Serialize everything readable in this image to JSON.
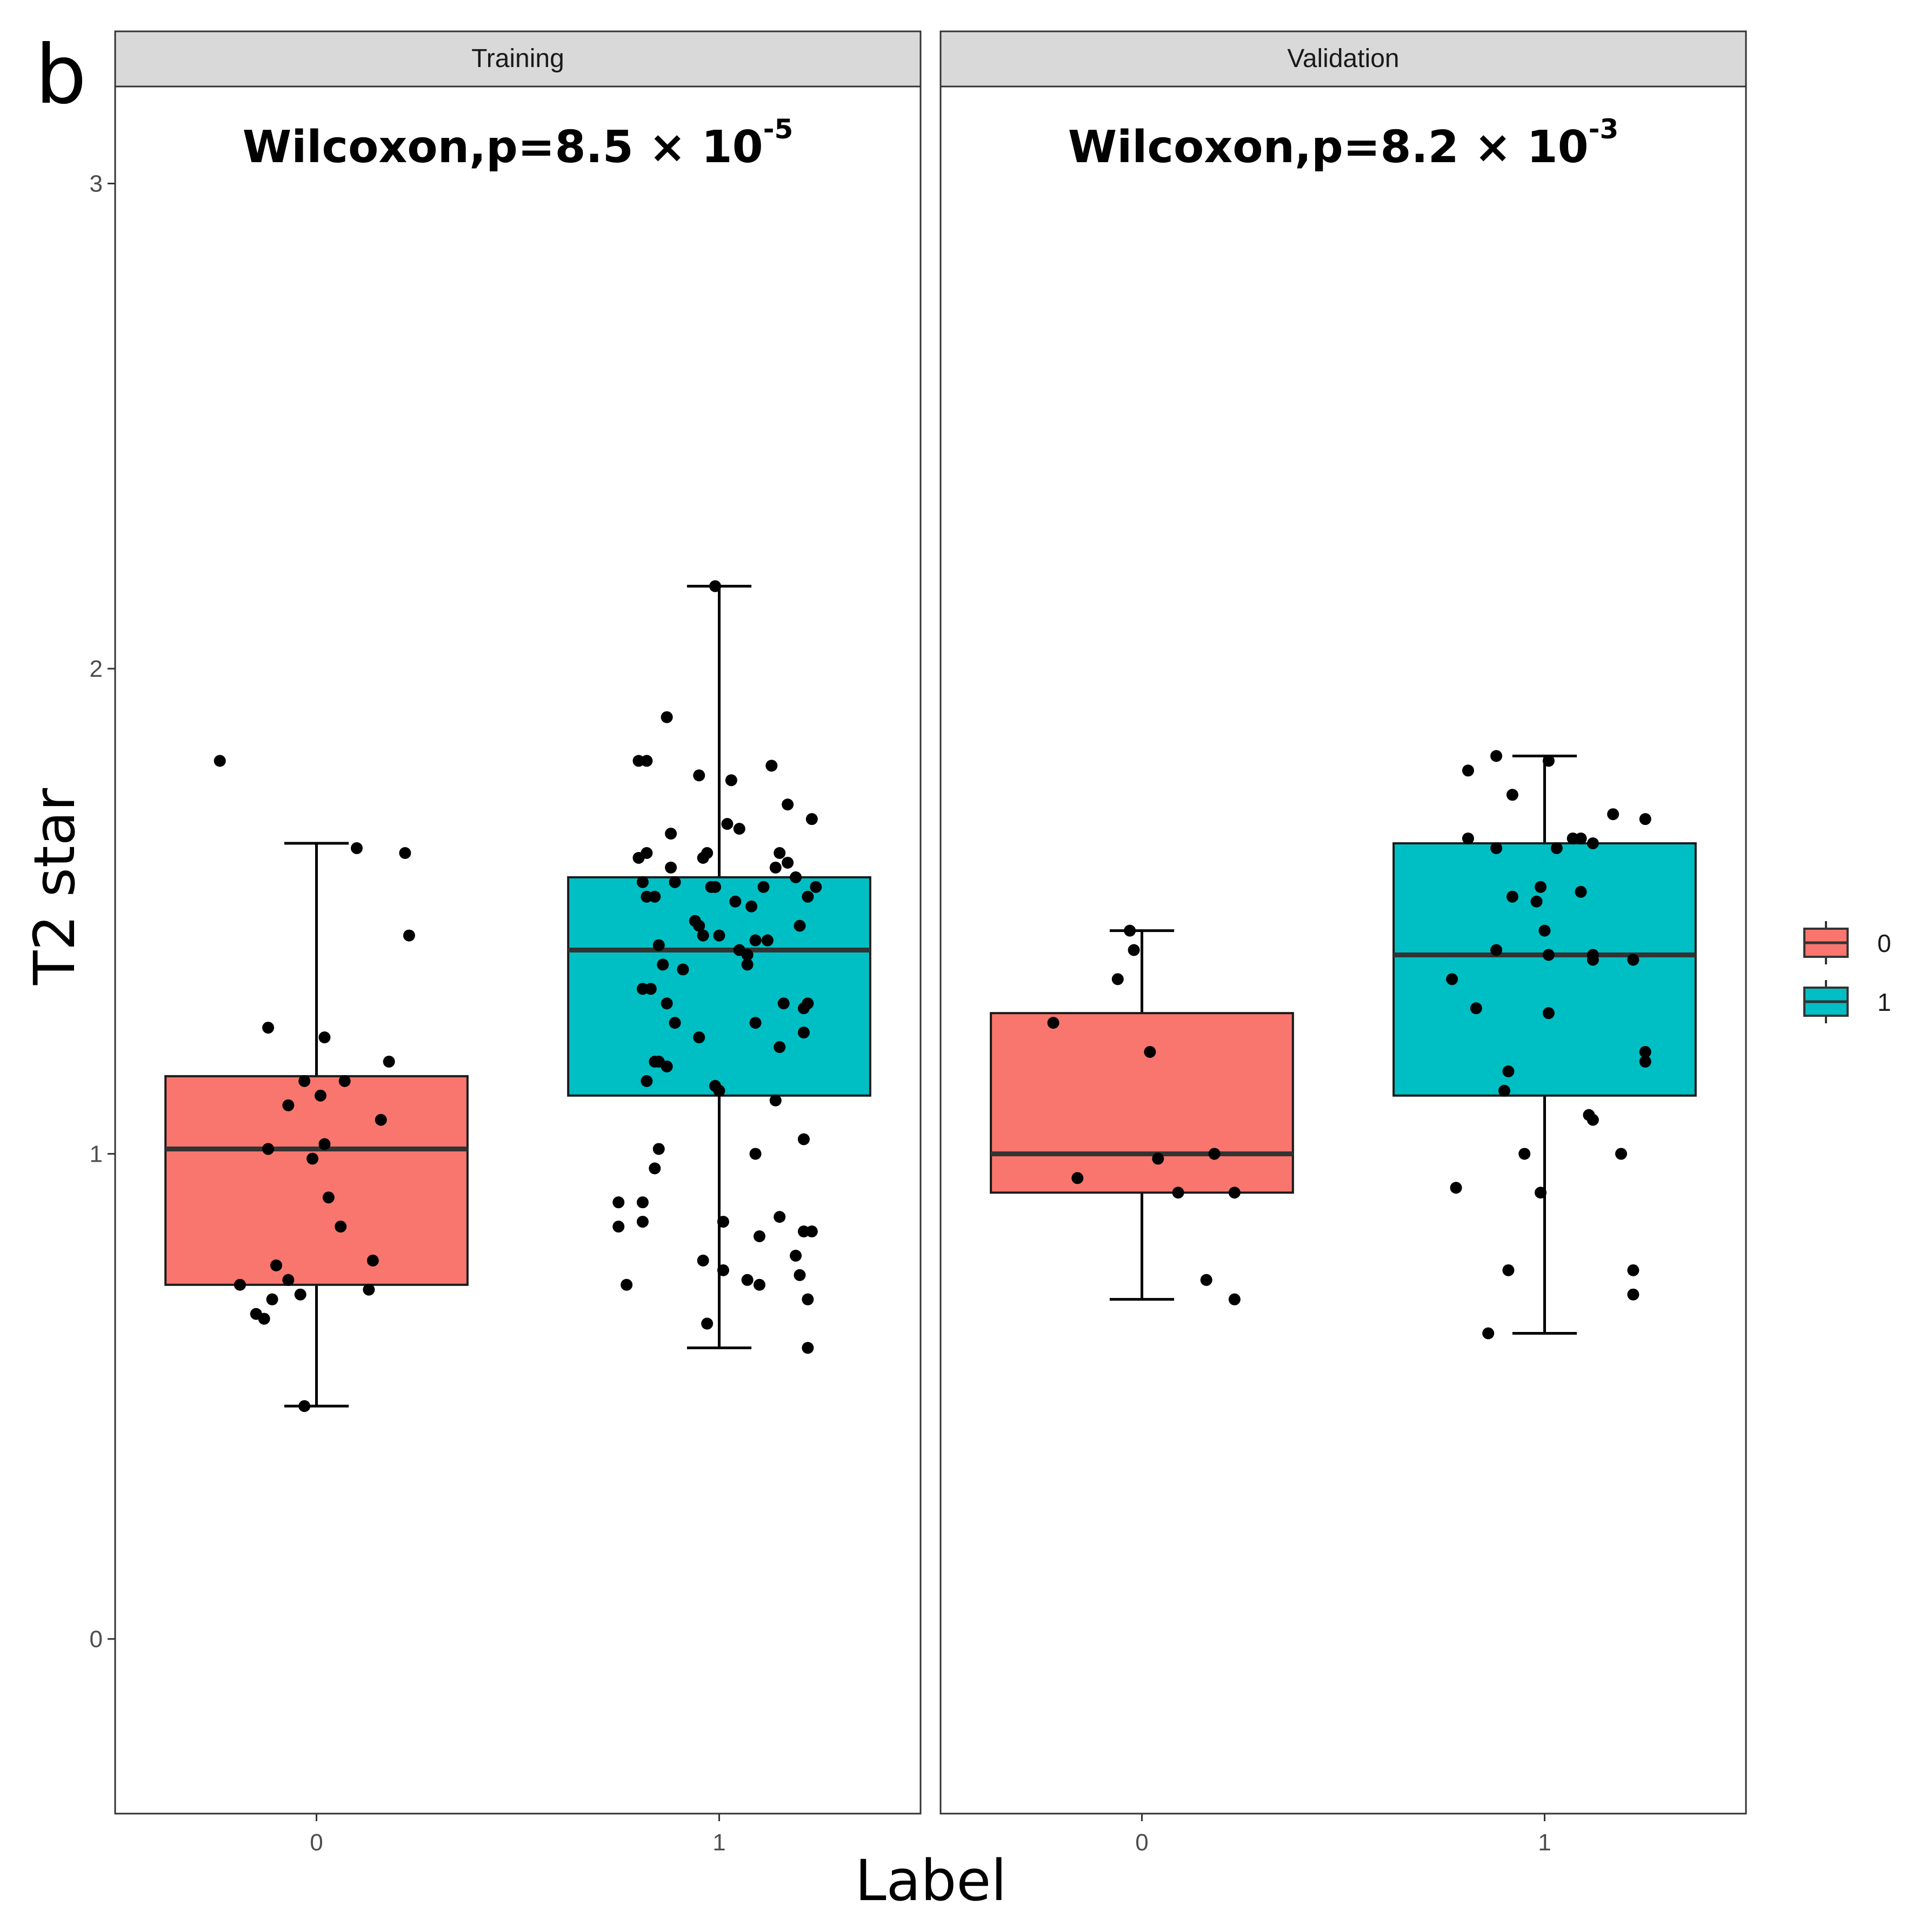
{
  "panel_tag": "b",
  "chart_data": {
    "type": "boxplot",
    "title": "",
    "xlabel": "Label",
    "ylabel": "T2 star",
    "ylim": [
      -0.36,
      3.2
    ],
    "y_ticks": [
      "0",
      "1",
      "2",
      "3"
    ],
    "y_tick_values": [
      0,
      1,
      2,
      3
    ],
    "categories": [
      "0",
      "1"
    ],
    "grid": false,
    "legend": {
      "position": "right",
      "entries": [
        "0",
        "1"
      ],
      "colors": [
        "#F8766D",
        "#00BFC4"
      ]
    },
    "facets": [
      {
        "name": "Training",
        "annotation": {
          "prefix": "Wilcoxon,p=8.5 × 10",
          "exponent": "-5"
        },
        "groups": [
          {
            "label": "0",
            "color": "#F8766D",
            "q1": 0.73,
            "median": 1.01,
            "q3": 1.16,
            "whisker_low": 0.48,
            "whisker_high": 1.64,
            "points": [
              [
                -0.24,
                1.81
              ],
              [
                0.1,
                1.63
              ],
              [
                0.22,
                1.62
              ],
              [
                0.23,
                1.45
              ],
              [
                -0.12,
                1.26
              ],
              [
                0.02,
                1.24
              ],
              [
                0.18,
                1.19
              ],
              [
                -0.03,
                1.15
              ],
              [
                0.07,
                1.15
              ],
              [
                0.01,
                1.12
              ],
              [
                -0.07,
                1.1
              ],
              [
                0.16,
                1.07
              ],
              [
                -0.12,
                1.01
              ],
              [
                0.02,
                1.02
              ],
              [
                -0.01,
                0.99
              ],
              [
                0.03,
                0.91
              ],
              [
                0.06,
                0.85
              ],
              [
                0.14,
                0.78
              ],
              [
                -0.1,
                0.77
              ],
              [
                -0.07,
                0.74
              ],
              [
                0.13,
                0.72
              ],
              [
                -0.19,
                0.73
              ],
              [
                -0.04,
                0.71
              ],
              [
                -0.11,
                0.7
              ],
              [
                -0.15,
                0.67
              ],
              [
                -0.13,
                0.66
              ],
              [
                -0.03,
                0.48
              ]
            ]
          },
          {
            "label": "1",
            "color": "#00BFC4",
            "q1": 1.12,
            "median": 1.42,
            "q3": 1.57,
            "whisker_low": 0.6,
            "whisker_high": 2.17,
            "points": [
              [
                -0.01,
                2.17
              ],
              [
                -0.13,
                1.9
              ],
              [
                -0.2,
                1.81
              ],
              [
                -0.18,
                1.81
              ],
              [
                0.13,
                1.8
              ],
              [
                -0.05,
                1.78
              ],
              [
                0.03,
                1.77
              ],
              [
                0.17,
                1.72
              ],
              [
                0.02,
                1.68
              ],
              [
                0.23,
                1.69
              ],
              [
                0.05,
                1.67
              ],
              [
                -0.12,
                1.66
              ],
              [
                -0.2,
                1.61
              ],
              [
                -0.18,
                1.62
              ],
              [
                -0.04,
                1.61
              ],
              [
                -0.03,
                1.62
              ],
              [
                0.15,
                1.62
              ],
              [
                0.17,
                1.6
              ],
              [
                0.14,
                1.59
              ],
              [
                -0.12,
                1.59
              ],
              [
                -0.11,
                1.56
              ],
              [
                0.19,
                1.57
              ],
              [
                -0.19,
                1.56
              ],
              [
                -0.02,
                1.55
              ],
              [
                -0.01,
                1.55
              ],
              [
                0.11,
                1.55
              ],
              [
                0.24,
                1.55
              ],
              [
                -0.18,
                1.53
              ],
              [
                -0.16,
                1.53
              ],
              [
                0.04,
                1.52
              ],
              [
                0.08,
                1.51
              ],
              [
                0.22,
                1.53
              ],
              [
                -0.06,
                1.48
              ],
              [
                -0.05,
                1.47
              ],
              [
                -0.04,
                1.45
              ],
              [
                0.0,
                1.45
              ],
              [
                0.09,
                1.44
              ],
              [
                0.12,
                1.44
              ],
              [
                0.2,
                1.47
              ],
              [
                -0.15,
                1.43
              ],
              [
                0.05,
                1.42
              ],
              [
                0.07,
                1.41
              ],
              [
                -0.14,
                1.39
              ],
              [
                -0.09,
                1.38
              ],
              [
                0.07,
                1.39
              ],
              [
                -0.17,
                1.34
              ],
              [
                -0.19,
                1.34
              ],
              [
                -0.13,
                1.31
              ],
              [
                0.16,
                1.31
              ],
              [
                0.21,
                1.3
              ],
              [
                0.22,
                1.31
              ],
              [
                -0.11,
                1.27
              ],
              [
                0.09,
                1.27
              ],
              [
                -0.05,
                1.24
              ],
              [
                0.21,
                1.25
              ],
              [
                0.15,
                1.22
              ],
              [
                -0.16,
                1.19
              ],
              [
                -0.15,
                1.19
              ],
              [
                -0.13,
                1.18
              ],
              [
                -0.18,
                1.15
              ],
              [
                -0.01,
                1.14
              ],
              [
                0.0,
                1.13
              ],
              [
                0.14,
                1.11
              ],
              [
                0.21,
                1.03
              ],
              [
                -0.15,
                1.01
              ],
              [
                0.09,
                1.0
              ],
              [
                -0.16,
                0.97
              ],
              [
                -0.25,
                0.9
              ],
              [
                -0.19,
                0.9
              ],
              [
                -0.25,
                0.85
              ],
              [
                -0.19,
                0.86
              ],
              [
                0.01,
                0.86
              ],
              [
                0.15,
                0.87
              ],
              [
                0.1,
                0.83
              ],
              [
                0.21,
                0.84
              ],
              [
                0.23,
                0.84
              ],
              [
                0.19,
                0.79
              ],
              [
                -0.04,
                0.78
              ],
              [
                0.01,
                0.76
              ],
              [
                0.2,
                0.75
              ],
              [
                0.07,
                0.74
              ],
              [
                0.1,
                0.73
              ],
              [
                -0.23,
                0.73
              ],
              [
                0.22,
                0.7
              ],
              [
                -0.03,
                0.65
              ],
              [
                0.22,
                0.6
              ]
            ]
          }
        ]
      },
      {
        "name": "Validation",
        "annotation": {
          "prefix": "Wilcoxon,p=8.2 × 10",
          "exponent": "-3"
        },
        "groups": [
          {
            "label": "0",
            "color": "#F8766D",
            "q1": 0.92,
            "median": 1.0,
            "q3": 1.29,
            "whisker_low": 0.7,
            "whisker_high": 1.46,
            "points": [
              [
                -0.03,
                1.46
              ],
              [
                -0.02,
                1.42
              ],
              [
                -0.06,
                1.36
              ],
              [
                -0.22,
                1.27
              ],
              [
                0.02,
                1.21
              ],
              [
                -0.16,
                0.95
              ],
              [
                0.04,
                0.99
              ],
              [
                0.18,
                1.0
              ],
              [
                0.09,
                0.92
              ],
              [
                0.23,
                0.92
              ],
              [
                0.16,
                0.74
              ],
              [
                0.23,
                0.7
              ]
            ]
          },
          {
            "label": "1",
            "color": "#00BFC4",
            "q1": 1.12,
            "median": 1.41,
            "q3": 1.64,
            "whisker_low": 0.63,
            "whisker_high": 1.82,
            "points": [
              [
                -0.12,
                1.82
              ],
              [
                0.01,
                1.81
              ],
              [
                -0.19,
                1.79
              ],
              [
                -0.08,
                1.74
              ],
              [
                0.17,
                1.7
              ],
              [
                0.25,
                1.69
              ],
              [
                -0.19,
                1.65
              ],
              [
                0.09,
                1.65
              ],
              [
                0.07,
                1.65
              ],
              [
                0.12,
                1.64
              ],
              [
                -0.12,
                1.63
              ],
              [
                0.03,
                1.63
              ],
              [
                -0.08,
                1.53
              ],
              [
                -0.01,
                1.55
              ],
              [
                -0.02,
                1.52
              ],
              [
                0.09,
                1.54
              ],
              [
                0.0,
                1.46
              ],
              [
                -0.12,
                1.42
              ],
              [
                0.01,
                1.41
              ],
              [
                0.12,
                1.41
              ],
              [
                0.12,
                1.4
              ],
              [
                0.22,
                1.4
              ],
              [
                -0.23,
                1.36
              ],
              [
                -0.17,
                1.3
              ],
              [
                0.01,
                1.29
              ],
              [
                0.25,
                1.21
              ],
              [
                0.25,
                1.19
              ],
              [
                -0.09,
                1.17
              ],
              [
                -0.1,
                1.13
              ],
              [
                0.11,
                1.08
              ],
              [
                0.12,
                1.07
              ],
              [
                -0.05,
                1.0
              ],
              [
                0.19,
                1.0
              ],
              [
                -0.22,
                0.93
              ],
              [
                -0.01,
                0.92
              ],
              [
                -0.09,
                0.76
              ],
              [
                0.22,
                0.76
              ],
              [
                0.22,
                0.71
              ],
              [
                -0.14,
                0.63
              ]
            ]
          }
        ]
      }
    ]
  }
}
